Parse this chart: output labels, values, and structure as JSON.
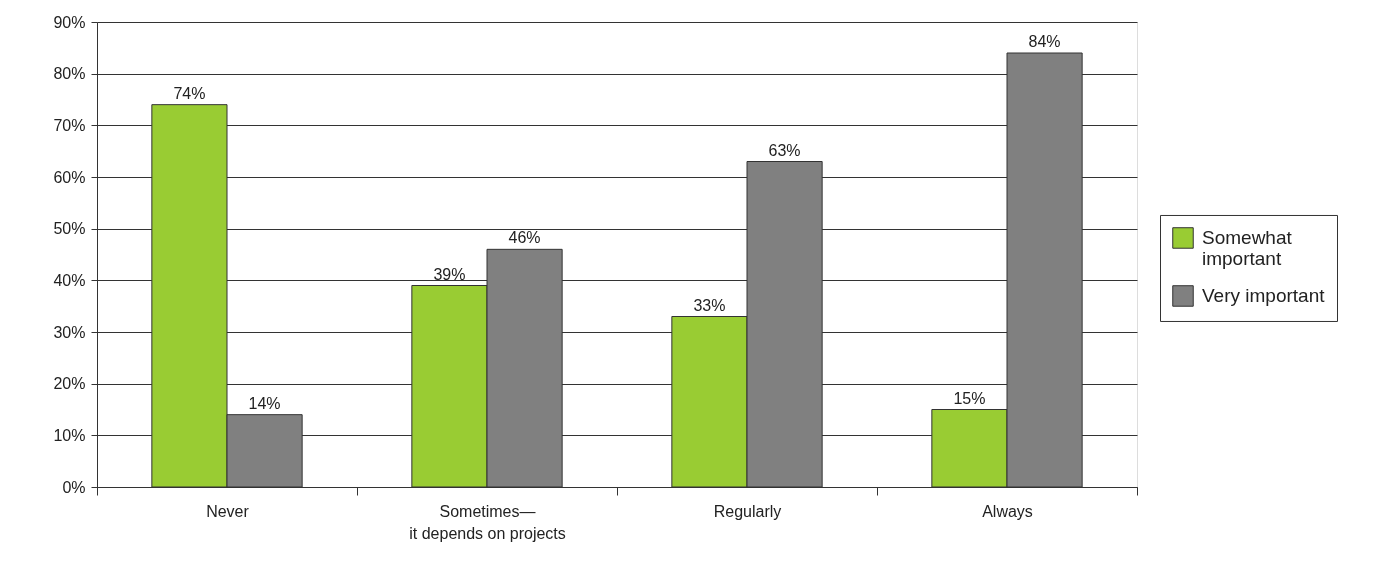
{
  "chart_data": {
    "type": "bar",
    "categories": [
      "Never",
      "Sometimes—\nit depends on projects",
      "Regularly",
      "Always"
    ],
    "series": [
      {
        "name": "Somewhat important",
        "color": "#99cc33",
        "values": [
          74,
          39,
          33,
          15
        ],
        "value_labels": [
          "74%",
          "39%",
          "33%",
          "15%"
        ]
      },
      {
        "name": "Very important",
        "color": "#808080",
        "values": [
          14,
          46,
          63,
          84
        ],
        "value_labels": [
          "14%",
          "46%",
          "63%",
          "84%"
        ]
      }
    ],
    "ylim": [
      0,
      90
    ],
    "yticks": [
      {
        "value": 0,
        "label": "0%"
      },
      {
        "value": 10,
        "label": "10%"
      },
      {
        "value": 20,
        "label": "20%"
      },
      {
        "value": 30,
        "label": "30%"
      },
      {
        "value": 40,
        "label": "40%"
      },
      {
        "value": 50,
        "label": "50%"
      },
      {
        "value": 60,
        "label": "60%"
      },
      {
        "value": 70,
        "label": "70%"
      },
      {
        "value": 80,
        "label": "80%"
      },
      {
        "value": 90,
        "label": "90%"
      }
    ],
    "grid": "y",
    "legend": "right"
  }
}
